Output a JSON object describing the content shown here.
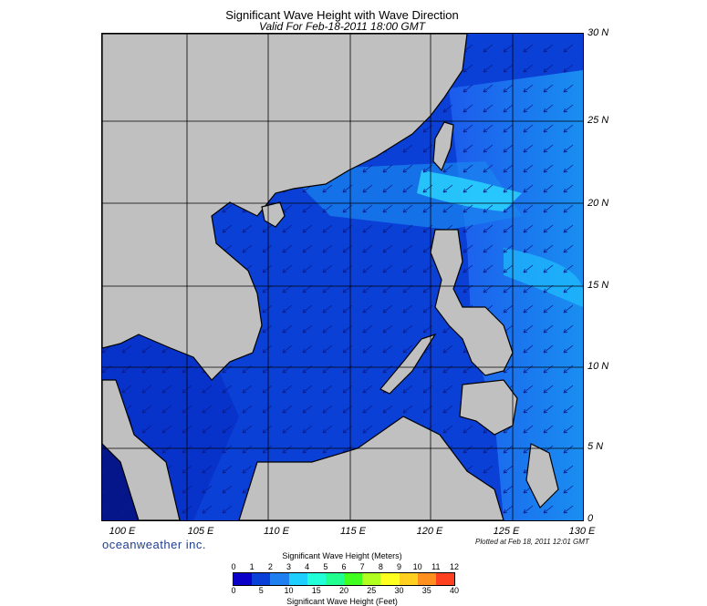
{
  "title": "Significant Wave Height with Wave Direction",
  "subtitle": "Valid For Feb-18-2011 18:00 GMT",
  "latitude_labels": [
    "30 N",
    "25 N",
    "20 N",
    "15 N",
    "10 N",
    "5 N",
    "0"
  ],
  "longitude_labels": [
    "100 E",
    "105 E",
    "110 E",
    "115 E",
    "120 E",
    "125 E",
    "130 E"
  ],
  "brand": "oceanweather inc.",
  "plotted_note": "Plotted at Feb 18, 2011 12:01 GMT",
  "colorbar": {
    "title_meters": "Significant Wave Height (Meters)",
    "title_feet": "Significant Wave Height (Feet)",
    "meter_ticks": [
      "0",
      "1",
      "2",
      "3",
      "4",
      "5",
      "6",
      "7",
      "8",
      "9",
      "10",
      "11",
      "12"
    ],
    "feet_ticks": [
      "0",
      "5",
      "10",
      "15",
      "20",
      "25",
      "30",
      "35",
      "40"
    ],
    "colors": [
      "#0a00c8",
      "#0a3fd8",
      "#1f7ef0",
      "#1fd0ff",
      "#20ffd8",
      "#20ff90",
      "#40ff20",
      "#b0ff20",
      "#ffff20",
      "#ffd020",
      "#ff9020",
      "#ff4020"
    ]
  },
  "colors": {
    "land": "#c0c0c0",
    "coast": "#000000",
    "grid": "#000000",
    "arrow": "#0b1a8a"
  }
}
